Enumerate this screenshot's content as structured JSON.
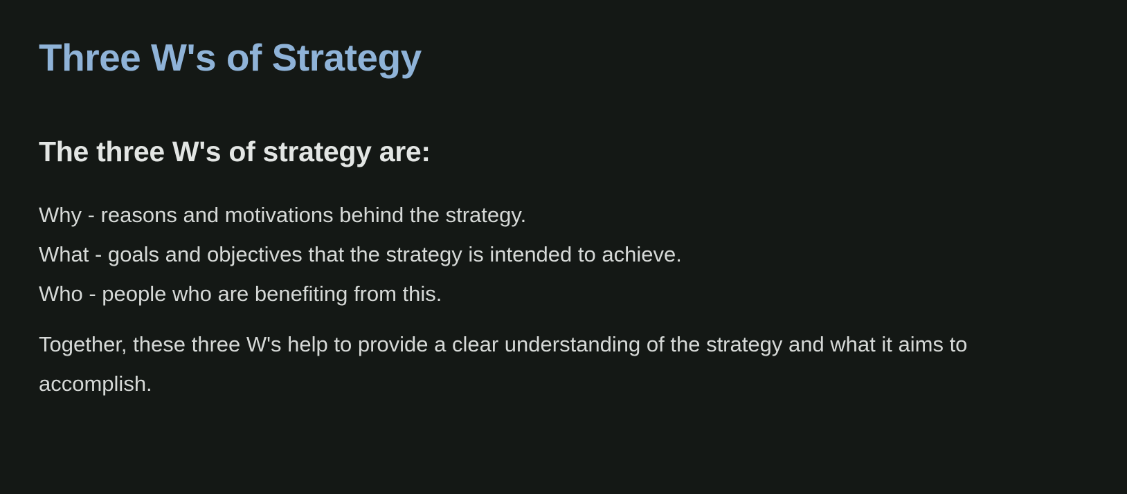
{
  "slide": {
    "title": "Three W's of Strategy",
    "subtitle": "The three W's of strategy are:",
    "items": [
      "Why - reasons and motivations behind the strategy.",
      "What - goals and objectives that the strategy is intended to achieve.",
      "Who - people who are benefiting from this."
    ],
    "summary": "Together, these three W's help to provide a clear understanding of the strategy and what it aims to accomplish."
  },
  "colors": {
    "background": "#141815",
    "title": "#8fb3d8",
    "heading": "#e3e6e4",
    "body": "#d6d9d7"
  }
}
